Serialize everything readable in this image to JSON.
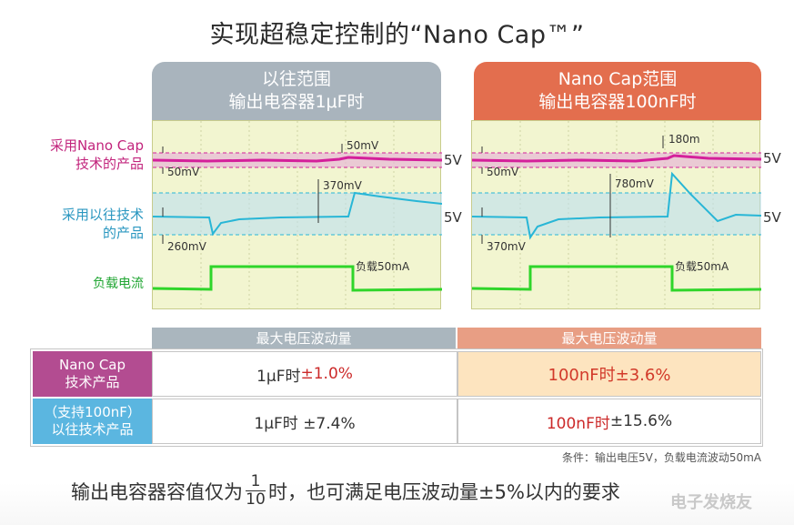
{
  "title": "实现超稳定控制的“Nano Cap™”",
  "headers": {
    "left_line1": "以往范围",
    "left_line2": "输出电容器1μF时",
    "right_line1": "Nano Cap范围",
    "right_line2": "输出电容器100nF时"
  },
  "side_labels": {
    "nano_line1": "采用Nano Cap",
    "nano_line2": "技术的产品",
    "conv_line1": "采用以往技术",
    "conv_line2": "的产品",
    "load": "负载电流"
  },
  "voltage_label": "5V",
  "scope_left": {
    "nano_spike": "50mV",
    "nano_band": "50mV",
    "conv_spike": "370mV",
    "conv_drop": "260mV",
    "load": "负载50mA"
  },
  "scope_right": {
    "nano_spike": "180m",
    "nano_band": "50mV",
    "conv_spike": "780mV",
    "conv_drop": "370mV",
    "load": "负载50mA"
  },
  "table": {
    "col_left": "最大电压波动量",
    "col_right": "最大电压波动量",
    "row1_label_line1": "Nano Cap",
    "row1_label_line2": "技术产品",
    "row2_label_line1": "（支持100nF）",
    "row2_label_line2": "以往技术产品",
    "r1c1_prefix": "1μF时 ",
    "r1c1_value": "±1.0%",
    "r1c2": "100nF时±3.6%",
    "r2c1": "1μF时 ±7.4%",
    "r2c2_prefix": "100nF时",
    "r2c2_value": "±15.6%"
  },
  "note": "条件：输出电压5V，负载电流波动50mA",
  "footer": {
    "part1": "输出电容器容值仅为",
    "frac_num": "1",
    "frac_den": "10",
    "part2": "时，也可满足电压波动量±5%以内的",
    "part3": "要求"
  },
  "watermark": "电子发烧友",
  "colors": {
    "magenta_trace": "#d4209a",
    "cyan_trace": "#28b6d6",
    "green_trace": "#2fd52a",
    "gray_header": "#a9b4bd",
    "orange_header": "#e36e4e"
  }
}
